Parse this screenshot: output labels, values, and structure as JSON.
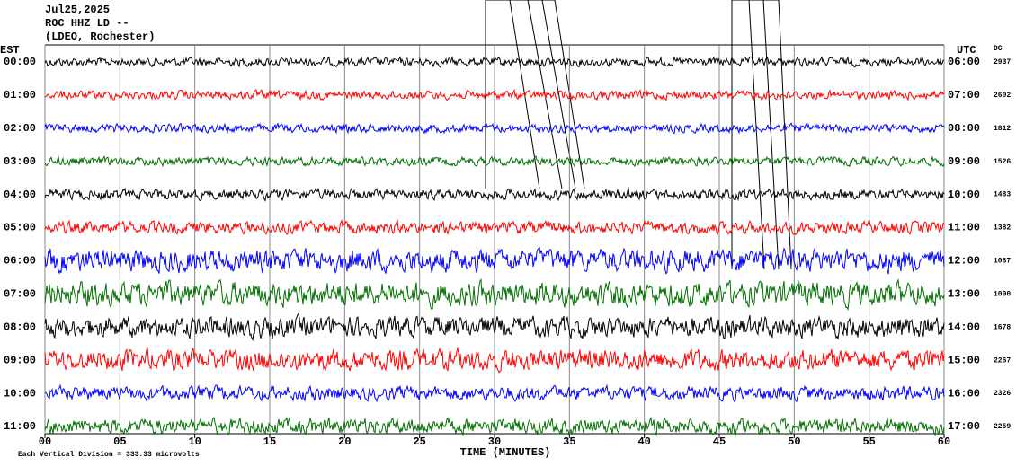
{
  "chart_data": {
    "type": "helicorder",
    "date": "Jul25,2025",
    "station": "ROC HHZ LD --",
    "network": "(LDEO, Rochester)",
    "left_axis_title": "EST",
    "right_axis_title": "UTC",
    "dc_title": "DC",
    "xlabel": "TIME (MINUTES)",
    "footer": "Each Vertical Division =  333.33 microvolts",
    "xlim": [
      0,
      60
    ],
    "xticks": [
      {
        "value": 0,
        "label": "00"
      },
      {
        "value": 5,
        "label": "05"
      },
      10,
      15,
      20,
      25,
      30,
      35,
      40,
      45,
      50,
      55,
      60
    ],
    "grid": true,
    "rows": [
      {
        "est": "00:00",
        "utc": "06:00",
        "dc": 2937,
        "color": "#000000"
      },
      {
        "est": "01:00",
        "utc": "07:00",
        "dc": 2602,
        "color": "#ff0000"
      },
      {
        "est": "02:00",
        "utc": "08:00",
        "dc": 1812,
        "color": "#0000ff"
      },
      {
        "est": "03:00",
        "utc": "09:00",
        "dc": 1526,
        "color": "#007000"
      },
      {
        "est": "04:00",
        "utc": "10:00",
        "dc": 1483,
        "color": "#000000"
      },
      {
        "est": "05:00",
        "utc": "11:00",
        "dc": 1382,
        "color": "#ff0000"
      },
      {
        "est": "06:00",
        "utc": "12:00",
        "dc": 1087,
        "color": "#0000ff"
      },
      {
        "est": "07:00",
        "utc": "13:00",
        "dc": 1090,
        "color": "#007000"
      },
      {
        "est": "08:00",
        "utc": "14:00",
        "dc": 1678,
        "color": "#000000"
      },
      {
        "est": "09:00",
        "utc": "15:00",
        "dc": 2267,
        "color": "#ff0000"
      },
      {
        "est": "10:00",
        "utc": "16:00",
        "dc": 2326,
        "color": "#0000ff"
      },
      {
        "est": "11:00",
        "utc": "17:00",
        "dc": 2259,
        "color": "#007000"
      }
    ]
  }
}
